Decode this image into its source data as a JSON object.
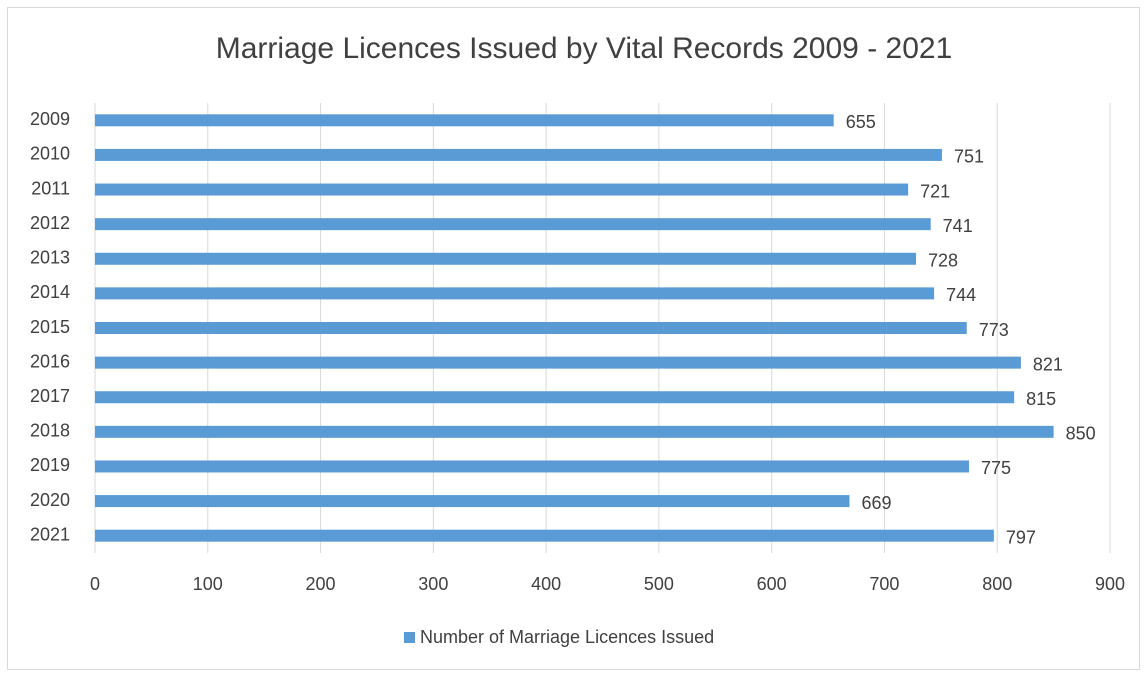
{
  "chart_data": {
    "type": "bar",
    "title": "Marriage Licences Issued by Vital Records 2009 - 2021",
    "categories": [
      "2009",
      "2010",
      "2011",
      "2012",
      "2013",
      "2014",
      "2015",
      "2016",
      "2017",
      "2018",
      "2019",
      "2020",
      "2021"
    ],
    "series": [
      {
        "name": "Number of Marriage Licences Issued",
        "color": "#5b9bd5",
        "values": [
          655,
          751,
          721,
          741,
          728,
          744,
          773,
          821,
          815,
          850,
          775,
          669,
          797
        ]
      }
    ],
    "xlim": [
      0,
      900
    ],
    "xticks": [
      0,
      100,
      200,
      300,
      400,
      500,
      600,
      700,
      800,
      900
    ],
    "grid": true,
    "legend": "bottom"
  }
}
